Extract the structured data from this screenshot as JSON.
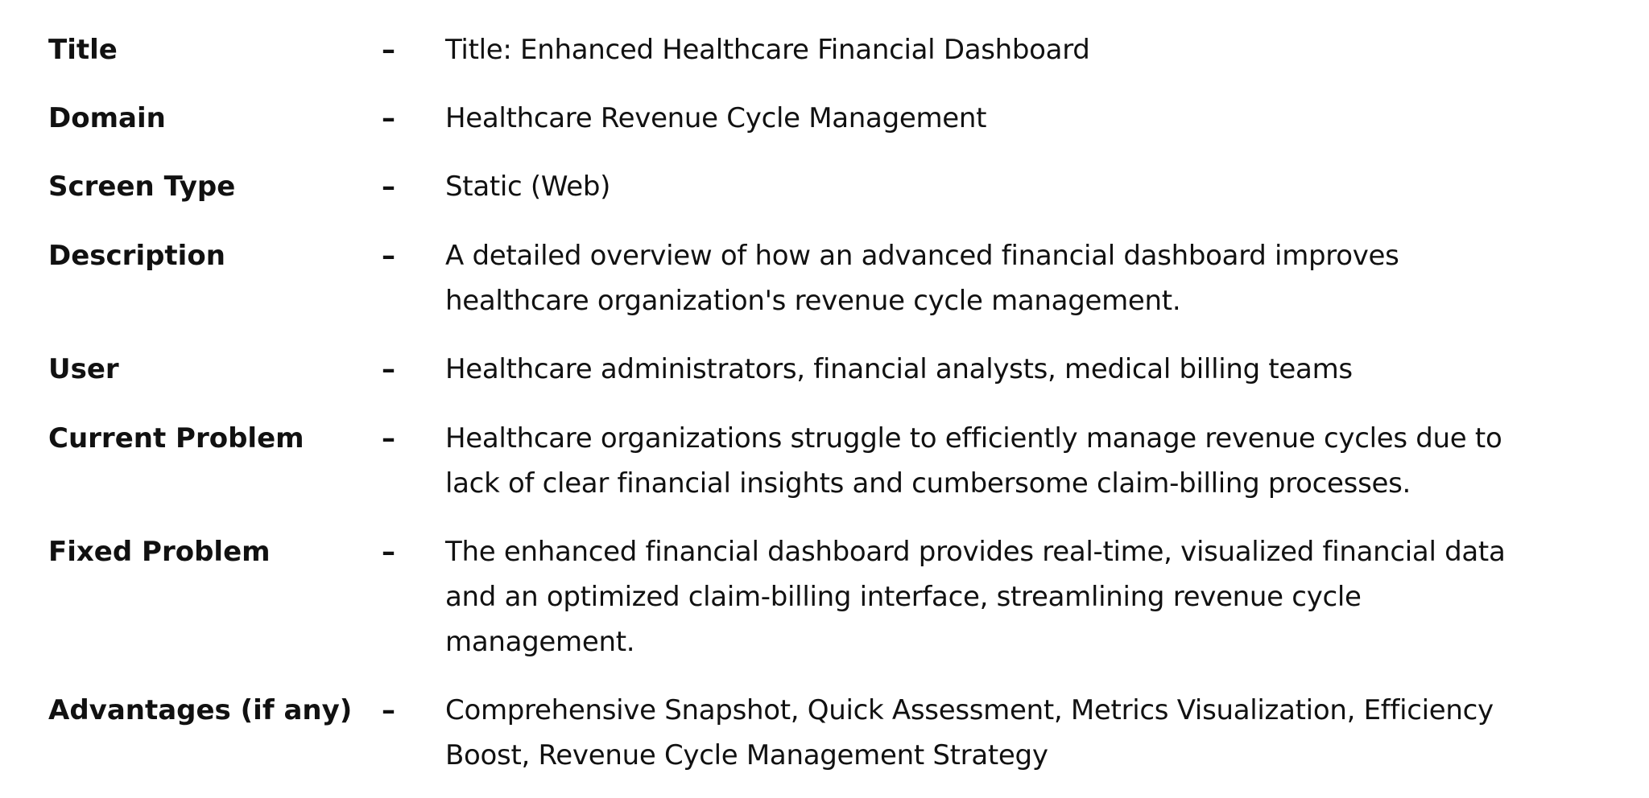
{
  "rows": [
    {
      "label": "Title",
      "dash": "–",
      "lines": [
        "Title: Enhanced Healthcare Financial Dashboard"
      ]
    },
    {
      "label": "Domain",
      "dash": "–",
      "lines": [
        "Healthcare Revenue Cycle Management"
      ]
    },
    {
      "label": "Screen Type",
      "dash": "–",
      "lines": [
        "Static (Web)"
      ]
    },
    {
      "label": "Description",
      "dash": "–",
      "lines": [
        "A detailed overview of how an advanced financial dashboard improves",
        "healthcare organization's revenue cycle management."
      ]
    },
    {
      "label": "User",
      "dash": "–",
      "lines": [
        "Healthcare administrators, financial analysts, medical billing teams"
      ]
    },
    {
      "label": "Current Problem",
      "dash": "–",
      "lines": [
        "Healthcare organizations struggle to efficiently manage revenue cycles due to",
        "lack of clear financial insights and cumbersome claim-billing processes."
      ]
    },
    {
      "label": "Fixed Problem",
      "dash": "–",
      "lines": [
        "The enhanced financial dashboard provides real-time, visualized financial data",
        "and an optimized claim-billing interface, streamlining revenue cycle",
        "management."
      ]
    },
    {
      "label": "Advantages (if any)",
      "dash": "–",
      "lines": [
        "Comprehensive Snapshot, Quick Assessment, Metrics Visualization, Efficiency",
        "Boost, Revenue Cycle Management Strategy"
      ]
    }
  ]
}
